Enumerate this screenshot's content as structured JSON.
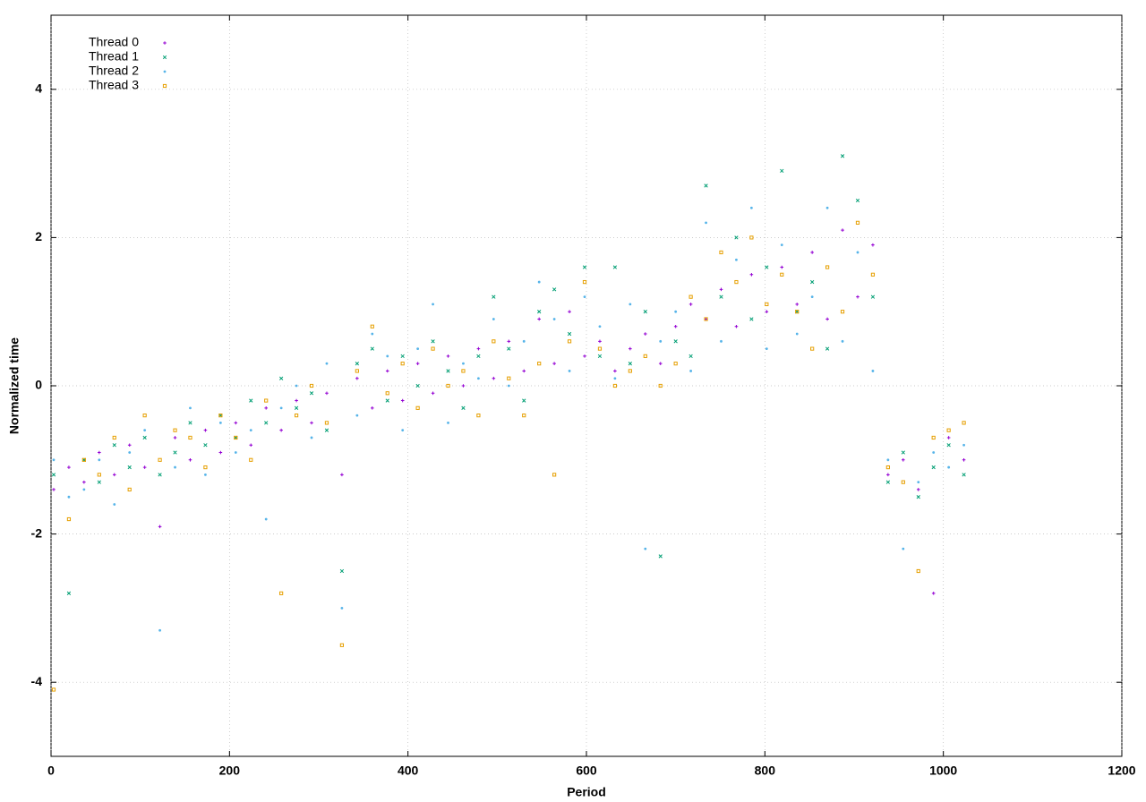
{
  "chart_data": {
    "type": "scatter",
    "x_label": "Period",
    "y_label": "Normalized time",
    "xlim": [
      0,
      1200
    ],
    "ylim": [
      -5,
      5
    ],
    "xticks": [
      0,
      200,
      400,
      600,
      800,
      1000,
      1200
    ],
    "yticks": [
      -4,
      -2,
      0,
      2,
      4
    ],
    "grid": true,
    "legend": "upper left",
    "x": [
      3,
      20,
      37,
      54,
      71,
      88,
      105,
      122,
      139,
      156,
      173,
      190,
      207,
      224,
      241,
      258,
      275,
      292,
      309,
      326,
      343,
      360,
      377,
      394,
      411,
      428,
      445,
      462,
      479,
      496,
      513,
      530,
      547,
      564,
      581,
      598,
      615,
      632,
      649,
      666,
      683,
      700,
      717,
      734,
      751,
      768,
      785,
      802,
      819,
      836,
      853,
      870,
      887,
      904,
      921,
      938,
      955,
      972,
      989,
      1006,
      1023
    ],
    "series": [
      {
        "name": "Thread 0",
        "color": "#9400d3",
        "marker": "plus",
        "values": [
          -1.4,
          -1.1,
          -1.3,
          -0.9,
          -1.2,
          -0.8,
          -1.1,
          -1.9,
          -0.7,
          -1.0,
          -0.6,
          -0.9,
          -0.5,
          -0.8,
          -0.3,
          -0.6,
          -0.2,
          -0.5,
          -0.1,
          -1.2,
          0.1,
          -0.3,
          0.2,
          -0.2,
          0.3,
          -0.1,
          0.4,
          0.0,
          0.5,
          0.1,
          0.6,
          0.2,
          0.9,
          0.3,
          1.0,
          0.4,
          0.6,
          0.2,
          0.5,
          0.7,
          0.3,
          0.8,
          1.1,
          0.9,
          1.3,
          0.8,
          1.5,
          1.0,
          1.6,
          1.1,
          1.8,
          0.9,
          2.1,
          1.2,
          1.9,
          -1.2,
          -1.0,
          -1.4,
          -2.8,
          -0.7,
          -1.0
        ]
      },
      {
        "name": "Thread 1",
        "color": "#009e73",
        "marker": "cross",
        "values": [
          -1.2,
          -2.8,
          -1.0,
          -1.3,
          -0.8,
          -1.1,
          -0.7,
          -1.2,
          -0.9,
          -0.5,
          -0.8,
          -0.4,
          -0.7,
          -0.2,
          -0.5,
          0.1,
          -0.3,
          -0.1,
          -0.6,
          -2.5,
          0.3,
          0.5,
          -0.2,
          0.4,
          0.0,
          0.6,
          0.2,
          -0.3,
          0.4,
          1.2,
          0.5,
          -0.2,
          1.0,
          1.3,
          0.7,
          1.6,
          0.4,
          1.6,
          0.3,
          1.0,
          -2.3,
          0.6,
          0.4,
          2.7,
          1.2,
          2.0,
          0.9,
          1.6,
          2.9,
          1.0,
          1.4,
          0.5,
          3.1,
          2.5,
          1.2,
          -1.3,
          -0.9,
          -1.5,
          -1.1,
          -0.8,
          -1.2
        ]
      },
      {
        "name": "Thread 2",
        "color": "#56b4e9",
        "marker": "star",
        "values": [
          -1.0,
          -1.5,
          -1.4,
          -1.0,
          -1.6,
          -0.9,
          -0.6,
          -3.3,
          -1.1,
          -0.3,
          -1.2,
          -0.5,
          -0.9,
          -0.6,
          -1.8,
          -0.3,
          0.0,
          -0.7,
          0.3,
          -3.0,
          -0.4,
          0.7,
          0.4,
          -0.6,
          0.5,
          1.1,
          -0.5,
          0.3,
          0.1,
          0.9,
          0.0,
          0.6,
          1.4,
          0.9,
          0.2,
          1.2,
          0.8,
          0.1,
          1.1,
          -2.2,
          0.6,
          1.0,
          0.2,
          2.2,
          0.6,
          1.7,
          2.4,
          0.5,
          1.9,
          0.7,
          1.2,
          2.4,
          0.6,
          1.8,
          0.2,
          -1.0,
          -2.2,
          -1.3,
          -0.9,
          -1.1,
          -0.8
        ]
      },
      {
        "name": "Thread 3",
        "color": "#e69f00",
        "marker": "square",
        "values": [
          -4.1,
          -1.8,
          -1.0,
          -1.2,
          -0.7,
          -1.4,
          -0.4,
          -1.0,
          -0.6,
          -0.7,
          -1.1,
          -0.4,
          -0.7,
          -1.0,
          -0.2,
          -2.8,
          -0.4,
          0.0,
          -0.5,
          -3.5,
          0.2,
          0.8,
          -0.1,
          0.3,
          -0.3,
          0.5,
          0.0,
          0.2,
          -0.4,
          0.6,
          0.1,
          -0.4,
          0.3,
          -1.2,
          0.6,
          1.4,
          0.5,
          0.0,
          0.2,
          0.4,
          0.0,
          0.3,
          1.2,
          0.9,
          1.8,
          1.4,
          2.0,
          1.1,
          1.5,
          1.0,
          0.5,
          1.6,
          1.0,
          2.2,
          1.5,
          -1.1,
          -1.3,
          -2.5,
          -0.7,
          -0.6,
          -0.5
        ]
      }
    ]
  }
}
